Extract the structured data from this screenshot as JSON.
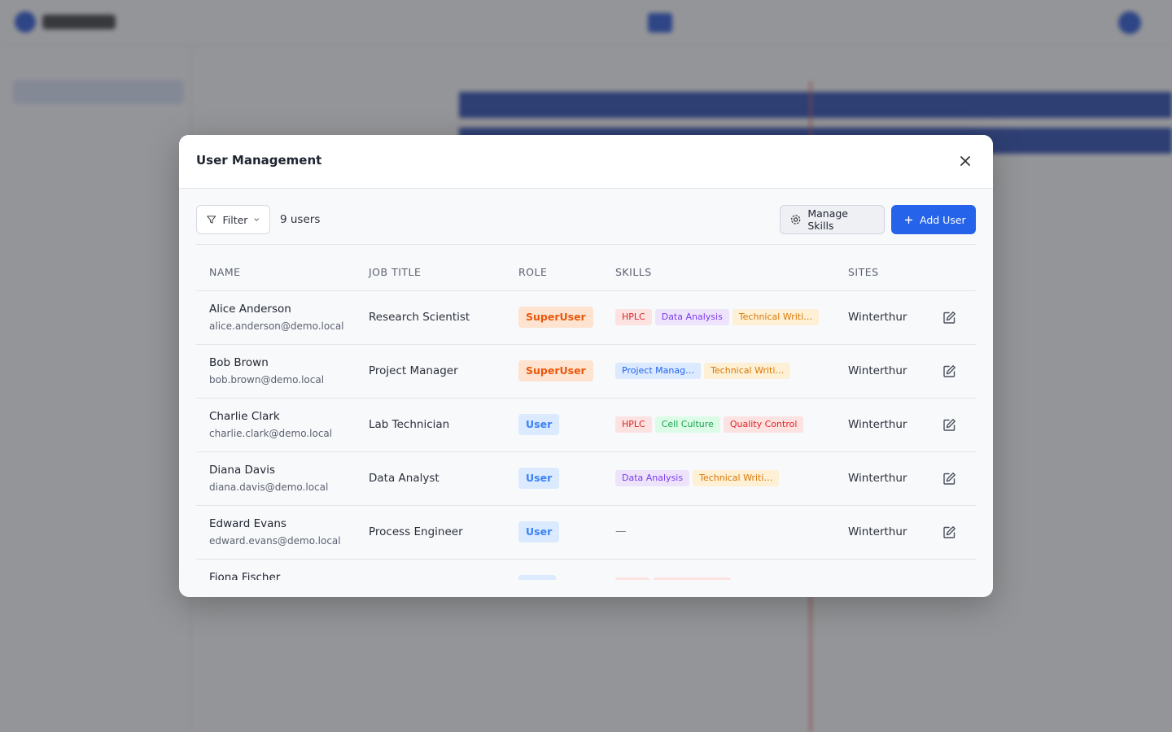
{
  "modal": {
    "title": "User Management",
    "filter": "Filter",
    "count": "9 users",
    "manage_skills": "Manage Skills",
    "add_user": "Add User"
  },
  "table": {
    "columns": [
      "NAME",
      "JOB TITLE",
      "ROLE",
      "SKILLS",
      "SITES"
    ],
    "rows": [
      {
        "name": "Alice Anderson",
        "email": "alice.anderson@demo.local",
        "job": "Research Scientist",
        "role": "SuperUser",
        "role_color": "orange",
        "skills": [
          {
            "label": "HPLC",
            "color": "red"
          },
          {
            "label": "Data Analysis",
            "color": "purple"
          },
          {
            "label": "Technical Writi…",
            "color": "orange"
          }
        ],
        "site": "Winterthur"
      },
      {
        "name": "Bob Brown",
        "email": "bob.brown@demo.local",
        "job": "Project Manager",
        "role": "SuperUser",
        "role_color": "orange",
        "skills": [
          {
            "label": "Project Manag…",
            "color": "blue"
          },
          {
            "label": "Technical Writi…",
            "color": "orange"
          }
        ],
        "site": "Winterthur"
      },
      {
        "name": "Charlie Clark",
        "email": "charlie.clark@demo.local",
        "job": "Lab Technician",
        "role": "User",
        "role_color": "blue",
        "skills": [
          {
            "label": "HPLC",
            "color": "red"
          },
          {
            "label": "Cell Culture",
            "color": "green"
          },
          {
            "label": "Quality Control",
            "color": "red"
          }
        ],
        "site": "Winterthur"
      },
      {
        "name": "Diana Davis",
        "email": "diana.davis@demo.local",
        "job": "Data Analyst",
        "role": "User",
        "role_color": "blue",
        "skills": [
          {
            "label": "Data Analysis",
            "color": "purple"
          },
          {
            "label": "Technical Writi…",
            "color": "orange"
          }
        ],
        "site": "Winterthur"
      },
      {
        "name": "Edward Evans",
        "email": "edward.evans@demo.local",
        "job": "Process Engineer",
        "role": "User",
        "role_color": "blue",
        "skills_text": "—",
        "site": "Winterthur"
      },
      {
        "name": "Fiona Fischer"
      }
    ]
  }
}
